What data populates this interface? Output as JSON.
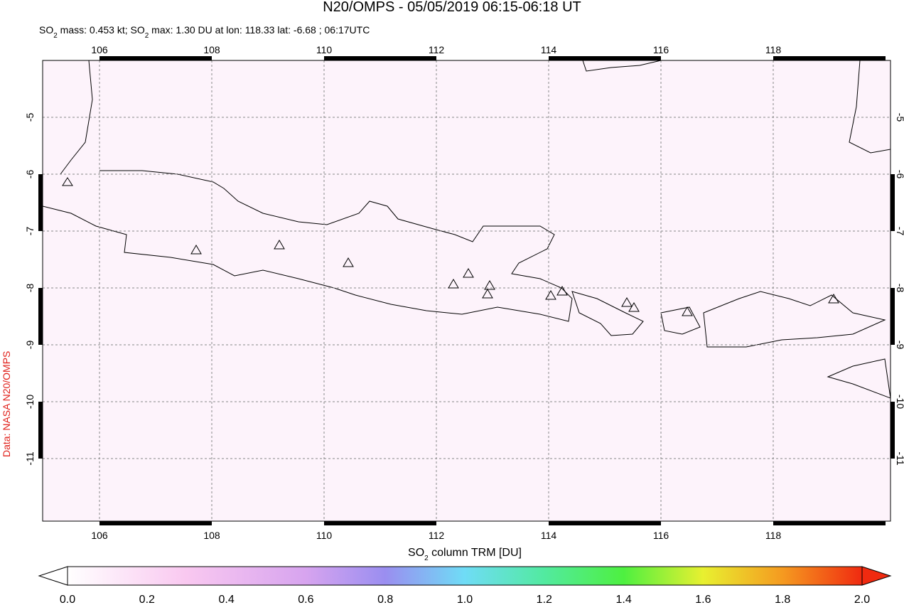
{
  "title": "N20/OMPS - 05/05/2019 06:15-06:18 UT",
  "subtitle": [
    "SO",
    "2",
    " mass: 0.453 kt; SO",
    "2",
    " max: 1.30 DU at lon: 118.33 lat: -6.68 ; 06:17UTC"
  ],
  "credit": "Data: NASA N20/OMPS",
  "lon_ticks": [
    106,
    108,
    110,
    112,
    114,
    116,
    118
  ],
  "lat_ticks": [
    -5,
    -6,
    -7,
    -8,
    -9,
    -10,
    -11
  ],
  "colorbar": {
    "label": [
      "SO",
      "2",
      " column TRM [DU]"
    ],
    "labels": [
      "0.0",
      "0.2",
      "0.4",
      "0.6",
      "0.8",
      "1.0",
      "1.2",
      "1.4",
      "1.6",
      "1.8",
      "2.0"
    ]
  }
}
